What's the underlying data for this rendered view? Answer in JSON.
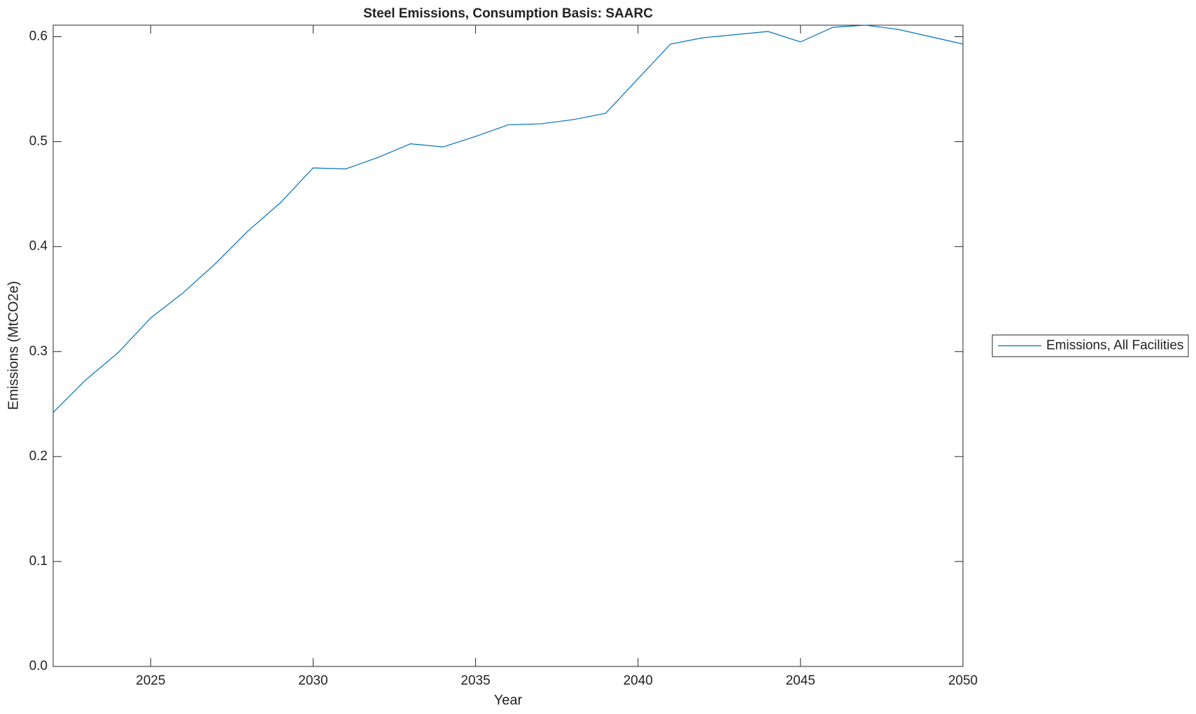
{
  "chart_data": {
    "type": "line",
    "title": "Steel Emissions, Consumption Basis: SAARC",
    "x_label": "Year",
    "y_label": "Emissions (MtCO2e)",
    "x": [
      2022,
      2023,
      2024,
      2025,
      2026,
      2027,
      2028,
      2029,
      2030,
      2031,
      2032,
      2033,
      2034,
      2035,
      2036,
      2037,
      2038,
      2039,
      2040,
      2041,
      2042,
      2043,
      2044,
      2045,
      2046,
      2047,
      2048,
      2049,
      2050
    ],
    "series": [
      {
        "name": "Emissions, All Facilities",
        "color": "#0072bd",
        "values": [
          0.242,
          0.273,
          0.299,
          0.332,
          0.356,
          0.384,
          0.415,
          0.442,
          0.475,
          0.474,
          0.485,
          0.498,
          0.495,
          0.505,
          0.516,
          0.517,
          0.521,
          0.527,
          0.56,
          0.593,
          0.599,
          0.602,
          0.605,
          0.595,
          0.609,
          0.611,
          0.607,
          0.6,
          0.593
        ]
      }
    ],
    "xlim": [
      2022,
      2050
    ],
    "xticks": [
      2025,
      2030,
      2035,
      2040,
      2045,
      2050
    ],
    "ylim": [
      0,
      0.611
    ],
    "yticks": [
      {
        "value": 0,
        "label": "0.0"
      },
      0.1,
      0.2,
      0.3,
      0.4,
      0.5,
      0.6
    ],
    "legend": "right"
  }
}
